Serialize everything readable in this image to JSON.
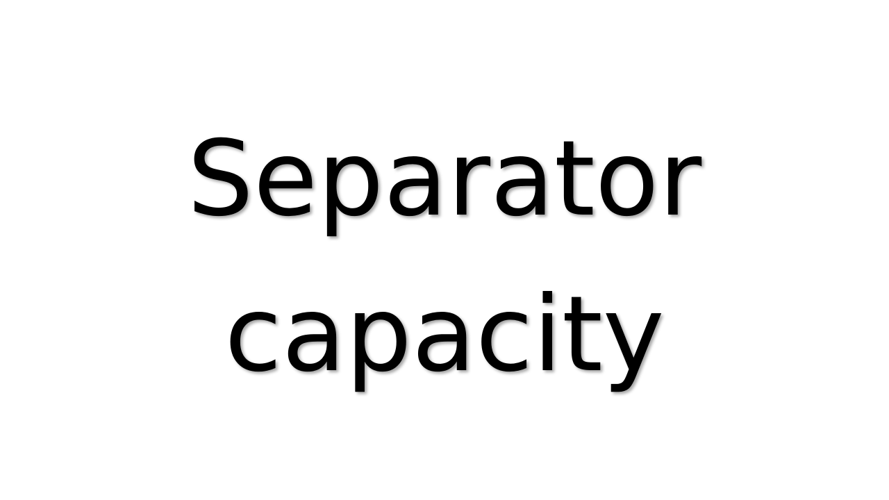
{
  "slide": {
    "title_lines": [
      "Separator",
      "capacity"
    ]
  }
}
